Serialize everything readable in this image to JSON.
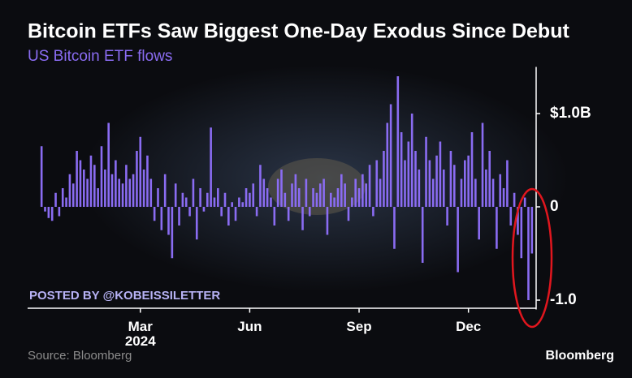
{
  "chart_data": {
    "type": "bar",
    "title": "Bitcoin ETFs Saw Biggest One-Day Exodus Since Debut",
    "subtitle": "US Bitcoin ETF flows",
    "watermark": "POSTED BY @KOBEISSILETTER",
    "source": "Source: Bloomberg",
    "logo": "Bloomberg",
    "x_sublabel": "2024",
    "color": "#8a6cf2",
    "ylim": [
      -1.1,
      1.5
    ],
    "yticks": [
      {
        "value": 1,
        "label": "$1.0B"
      },
      0,
      {
        "value": -1,
        "label": "-1.0"
      }
    ],
    "categories": [
      null,
      null,
      null,
      null,
      null,
      null,
      null,
      null,
      null,
      null,
      null,
      null,
      null,
      null,
      null,
      null,
      null,
      null,
      null,
      null,
      null,
      null,
      null,
      null,
      null,
      null,
      null,
      null,
      "Mar",
      null,
      null,
      null,
      null,
      null,
      null,
      null,
      null,
      null,
      null,
      null,
      null,
      null,
      null,
      null,
      null,
      null,
      null,
      null,
      null,
      null,
      null,
      null,
      null,
      null,
      null,
      null,
      null,
      null,
      null,
      "Jun",
      null,
      null,
      null,
      null,
      null,
      null,
      null,
      null,
      null,
      null,
      null,
      null,
      null,
      null,
      null,
      null,
      null,
      null,
      null,
      null,
      null,
      null,
      null,
      null,
      null,
      null,
      null,
      null,
      null,
      null,
      "Sep",
      null,
      null,
      null,
      null,
      null,
      null,
      null,
      null,
      null,
      null,
      null,
      null,
      null,
      null,
      null,
      null,
      null,
      null,
      null,
      null,
      null,
      null,
      null,
      null,
      null,
      null,
      null,
      null,
      null,
      null,
      "Dec",
      null,
      null,
      null,
      null,
      null,
      null,
      null,
      null,
      null,
      null,
      null,
      null,
      null,
      null,
      null,
      null,
      null,
      null
    ],
    "values": [
      0.65,
      -0.05,
      -0.12,
      -0.15,
      0.15,
      -0.1,
      0.2,
      0.1,
      0.35,
      0.25,
      0.6,
      0.5,
      0.4,
      0.3,
      0.55,
      0.45,
      0.2,
      0.65,
      0.4,
      0.9,
      0.35,
      0.5,
      0.3,
      0.25,
      0.45,
      0.3,
      0.35,
      0.6,
      0.75,
      0.4,
      0.55,
      0.3,
      -0.15,
      0.2,
      -0.25,
      0.35,
      -0.3,
      -0.55,
      0.25,
      -0.2,
      0.15,
      0.1,
      -0.1,
      0.3,
      -0.35,
      0.2,
      -0.05,
      0.15,
      0.85,
      0.1,
      0.2,
      -0.1,
      0.15,
      -0.2,
      0.05,
      -0.15,
      0.1,
      0.05,
      0.2,
      0.15,
      0.25,
      -0.1,
      0.45,
      0.3,
      0.2,
      0.1,
      -0.2,
      0.3,
      0.4,
      0.15,
      -0.15,
      0.25,
      0.35,
      0.2,
      -0.25,
      0.3,
      -0.1,
      0.2,
      0.15,
      0.25,
      0.3,
      -0.3,
      0.15,
      0.1,
      0.2,
      0.35,
      0.25,
      -0.15,
      0.1,
      0.3,
      0.2,
      0.35,
      0.25,
      0.45,
      -0.1,
      0.5,
      0.3,
      0.6,
      0.9,
      1.1,
      -0.45,
      1.4,
      0.8,
      0.5,
      0.7,
      1.0,
      0.6,
      0.4,
      -0.6,
      0.75,
      0.5,
      0.3,
      0.55,
      0.7,
      0.4,
      -0.2,
      0.6,
      0.45,
      -0.7,
      0.3,
      0.5,
      0.55,
      0.8,
      0.3,
      -0.35,
      0.9,
      0.4,
      0.6,
      0.3,
      -0.45,
      0.35,
      0.2,
      0.5,
      -0.2,
      0.15,
      -0.3,
      -0.55,
      0.1,
      -1.0,
      -0.5
    ]
  }
}
